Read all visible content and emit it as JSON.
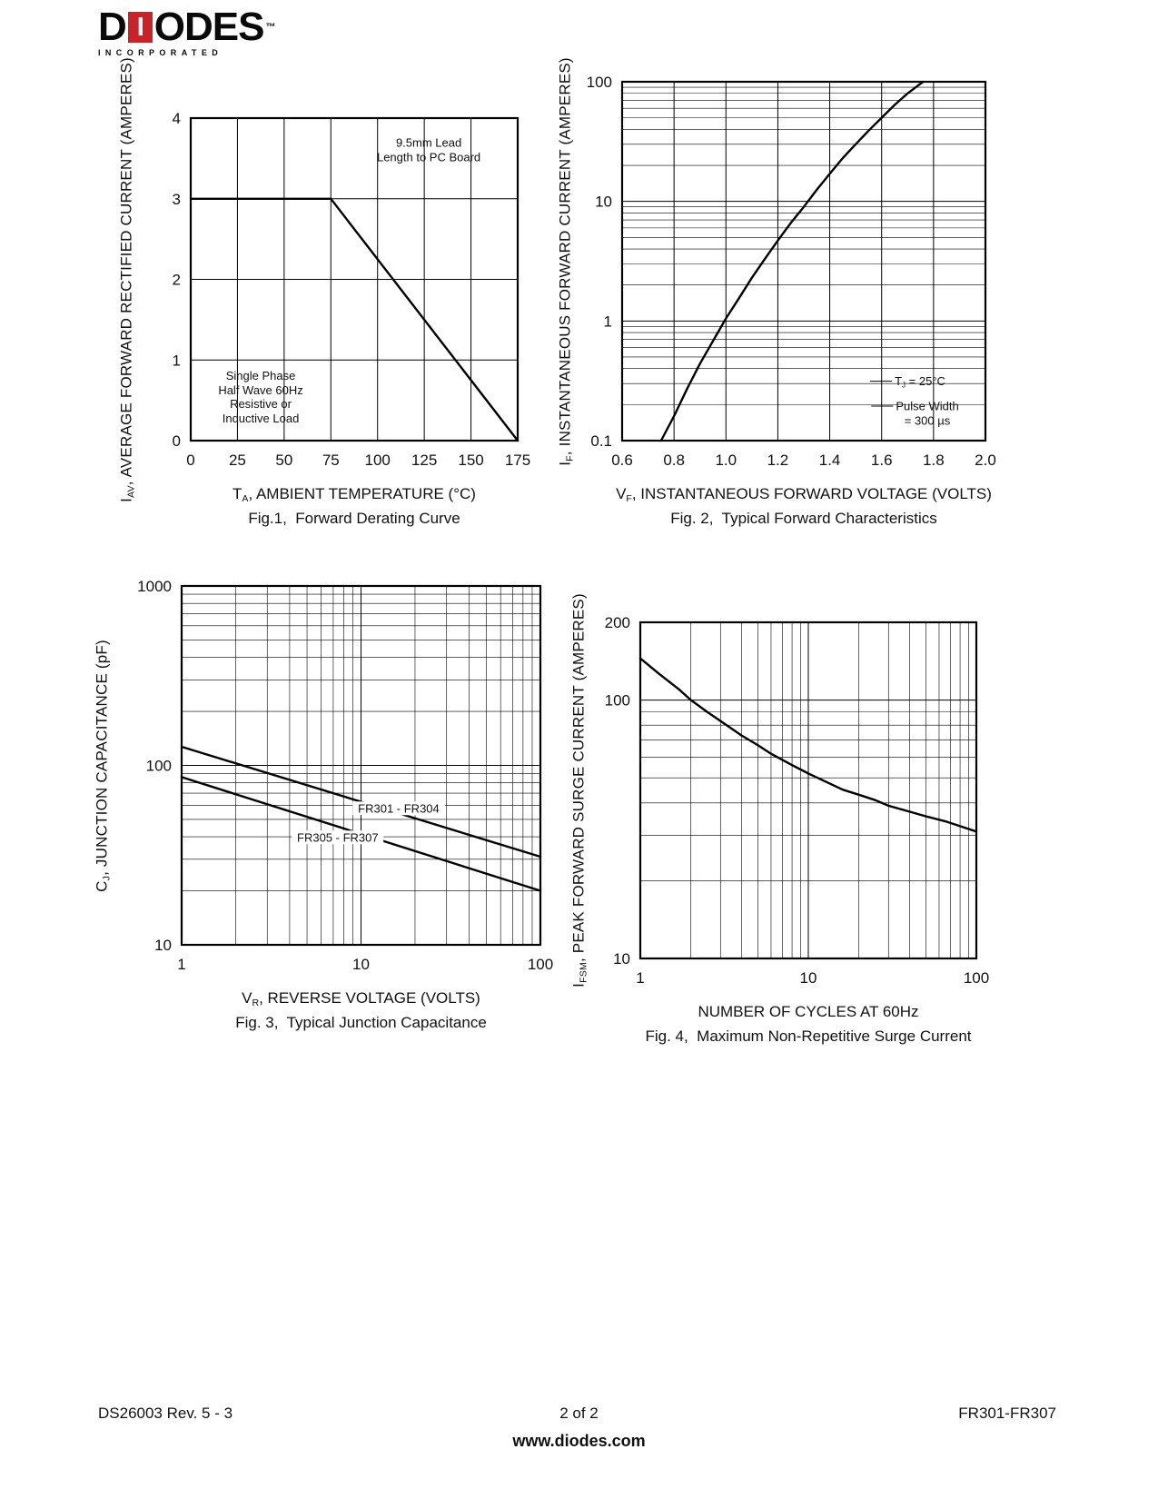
{
  "page": {
    "logo": {
      "d": "D",
      "i": "I",
      "rest": "ODES",
      "tm": "™",
      "incorporated": "INCORPORATED",
      "red": "#c9232a"
    },
    "footer": {
      "doc": "DS26003 Rev. 5 - 3",
      "page": "2 of 2",
      "part": "FR301-FR307",
      "site": "www.diodes.com"
    }
  },
  "chart_data": [
    {
      "id": "fig1",
      "type": "line",
      "x": {
        "scale": "linear",
        "min": 0,
        "max": 175,
        "ticks": [
          {
            "v": 0,
            "label": "0"
          },
          {
            "v": 25,
            "label": "25"
          },
          {
            "v": 50,
            "label": "50"
          },
          {
            "v": 75,
            "label": "75"
          },
          {
            "v": 100,
            "label": "100"
          },
          {
            "v": 125,
            "label": "125"
          },
          {
            "v": 150,
            "label": "150"
          },
          {
            "v": 175,
            "label": "175"
          }
        ]
      },
      "y": {
        "scale": "linear",
        "min": 0,
        "max": 4,
        "ticks": [
          {
            "v": 0,
            "label": "0"
          },
          {
            "v": 1,
            "label": "1"
          },
          {
            "v": 2,
            "label": "2"
          },
          {
            "v": 3,
            "label": "3"
          },
          {
            "v": 4,
            "label": "4"
          }
        ]
      },
      "series": [
        {
          "name": "forward-derating-curve",
          "points": [
            [
              0,
              3
            ],
            [
              75,
              3
            ],
            [
              175,
              0
            ]
          ]
        }
      ],
      "ylabel": {
        "pre": "I",
        "sub": "AV",
        "post": ", AVERAGE FORWARD RECTIFIED CURRENT (AMPERES)"
      },
      "xlabel": {
        "pre": "T",
        "sub": "A",
        "post": ", AMBIENT TEMPERATURE (°C)"
      },
      "caption": "Fig.1,  Forward Derating Curve",
      "grid": true,
      "annotations": [
        {
          "fx": 0.728,
          "fy": 0.099,
          "lines": [
            "9.5mm Lead",
            "Length to PC Board"
          ]
        },
        {
          "fx": 0.214,
          "fy": 0.865,
          "lines": [
            "Single Phase",
            "Half Wave 60Hz",
            "Resistive or",
            "Inductive Load"
          ]
        }
      ]
    },
    {
      "id": "fig2",
      "type": "line",
      "x": {
        "scale": "linear",
        "min": 0.6,
        "max": 2.0,
        "ticks": [
          {
            "v": 0.6,
            "label": "0.6"
          },
          {
            "v": 0.8,
            "label": "0.8"
          },
          {
            "v": 1.0,
            "label": "1.0"
          },
          {
            "v": 1.2,
            "label": "1.2"
          },
          {
            "v": 1.4,
            "label": "1.4"
          },
          {
            "v": 1.6,
            "label": "1.6"
          },
          {
            "v": 1.8,
            "label": "1.8"
          },
          {
            "v": 2.0,
            "label": "2.0"
          }
        ]
      },
      "y": {
        "scale": "log",
        "min": 0.1,
        "max": 100,
        "ticks": [
          {
            "v": 0.1,
            "label": "0.1"
          },
          {
            "v": 1,
            "label": "1"
          },
          {
            "v": 10,
            "label": "10"
          },
          {
            "v": 100,
            "label": "100"
          }
        ]
      },
      "series": [
        {
          "name": "typical-forward-characteristic",
          "points": [
            [
              0.75,
              0.1
            ],
            [
              0.8,
              0.16
            ],
            [
              0.85,
              0.27
            ],
            [
              0.9,
              0.44
            ],
            [
              0.95,
              0.68
            ],
            [
              1.0,
              1.05
            ],
            [
              1.05,
              1.55
            ],
            [
              1.1,
              2.3
            ],
            [
              1.15,
              3.3
            ],
            [
              1.2,
              4.7
            ],
            [
              1.25,
              6.6
            ],
            [
              1.3,
              9.0
            ],
            [
              1.35,
              12.5
            ],
            [
              1.4,
              17
            ],
            [
              1.45,
              23
            ],
            [
              1.5,
              30
            ],
            [
              1.55,
              39
            ],
            [
              1.6,
              50
            ],
            [
              1.65,
              64
            ],
            [
              1.7,
              80
            ],
            [
              1.76,
              100
            ]
          ]
        }
      ],
      "ylabel": {
        "pre": "I",
        "sub": "F",
        "post": ", INSTANTANEOUS FORWARD CURRENT (AMPERES)"
      },
      "xlabel": {
        "pre": "V",
        "sub": "F",
        "post": ", INSTANTANEOUS FORWARD VOLTAGE (VOLTS)"
      },
      "caption": "Fig. 2,  Typical Forward Characteristics",
      "grid": true,
      "annotations": [
        {
          "fx": 0.82,
          "fy": 0.84,
          "leader": true,
          "lines": [
            {
              "pre": "T",
              "sub": "J",
              "post": " = 25°C"
            }
          ]
        },
        {
          "fx": 0.84,
          "fy": 0.925,
          "leader": true,
          "lines": [
            "Pulse Width",
            "= 300 µs"
          ]
        }
      ]
    },
    {
      "id": "fig3",
      "type": "line",
      "x": {
        "scale": "log",
        "min": 1,
        "max": 100,
        "ticks": [
          {
            "v": 1,
            "label": "1"
          },
          {
            "v": 10,
            "label": "10"
          },
          {
            "v": 100,
            "label": "100"
          }
        ]
      },
      "y": {
        "scale": "log",
        "min": 10,
        "max": 1000,
        "ticks": [
          {
            "v": 10,
            "label": "10"
          },
          {
            "v": 100,
            "label": "100"
          },
          {
            "v": 1000,
            "label": "1000"
          }
        ]
      },
      "series": [
        {
          "name": "FR301-FR304",
          "points": [
            [
              1,
              127
            ],
            [
              100,
              31
            ]
          ]
        },
        {
          "name": "FR305-FR307",
          "points": [
            [
              1,
              86
            ],
            [
              100,
              20
            ]
          ]
        }
      ],
      "ylabel": {
        "pre": "C",
        "sub": "J",
        "post": ", JUNCTION CAPACITANCE (pF)"
      },
      "xlabel": {
        "pre": "V",
        "sub": "R",
        "post": ", REVERSE VOLTAGE (VOLTS)"
      },
      "caption": "Fig. 3,  Typical Junction Capacitance",
      "grid": true,
      "annotations": [
        {
          "fx": 0.605,
          "fy": 0.62,
          "bg": true,
          "lines": [
            "FR301 - FR304"
          ]
        },
        {
          "fx": 0.435,
          "fy": 0.7,
          "bg": true,
          "lines": [
            "FR305 - FR307"
          ]
        }
      ]
    },
    {
      "id": "fig4",
      "type": "line",
      "x": {
        "scale": "log",
        "min": 1,
        "max": 100,
        "ticks": [
          {
            "v": 1,
            "label": "1"
          },
          {
            "v": 10,
            "label": "10"
          },
          {
            "v": 100,
            "label": "100"
          }
        ]
      },
      "y": {
        "scale": "log",
        "min": 10,
        "max": 200,
        "ticks": [
          {
            "v": 10,
            "label": "10"
          },
          {
            "v": 100,
            "label": "100"
          },
          {
            "v": 200,
            "label": "200"
          }
        ]
      },
      "series": [
        {
          "name": "surge-current-curve",
          "points": [
            [
              1,
              145
            ],
            [
              1.3,
              126
            ],
            [
              1.7,
              110
            ],
            [
              2,
              100
            ],
            [
              2.5,
              90
            ],
            [
              3,
              83
            ],
            [
              4,
              73
            ],
            [
              5,
              67
            ],
            [
              6,
              62
            ],
            [
              8,
              56
            ],
            [
              10,
              52
            ],
            [
              13,
              48
            ],
            [
              16,
              45
            ],
            [
              20,
              43
            ],
            [
              25,
              41
            ],
            [
              30,
              39
            ],
            [
              40,
              37
            ],
            [
              50,
              35.5
            ],
            [
              65,
              34
            ],
            [
              80,
              32.5
            ],
            [
              100,
              31
            ]
          ]
        }
      ],
      "ylabel": {
        "pre": "I",
        "sub": "FSM",
        "post": ", PEAK FORWARD SURGE CURRENT (AMPERES)"
      },
      "xlabel": {
        "pre": "",
        "sub": "",
        "post": "NUMBER OF CYCLES AT 60Hz"
      },
      "caption": "Fig. 4,  Maximum Non-Repetitive Surge Current",
      "grid": true,
      "annotations": []
    }
  ]
}
